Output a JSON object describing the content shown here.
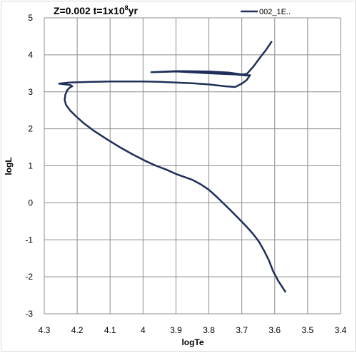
{
  "chart_data": {
    "type": "line",
    "title_main": "Z=0.002 t=1x10",
    "title_sup": "8",
    "title_end": "yr",
    "xlabel": "logTe",
    "ylabel": "logL",
    "xlim": [
      4.3,
      3.4
    ],
    "ylim": [
      -3,
      5
    ],
    "x_reversed": true,
    "grid": true,
    "legend_position": "top-right",
    "x_ticks": [
      "4.3",
      "4.2",
      "4.1",
      "4",
      "3.9",
      "3.8",
      "3.7",
      "3.6",
      "3.5",
      "3.4"
    ],
    "x_tick_values": [
      4.3,
      4.2,
      4.1,
      4.0,
      3.9,
      3.8,
      3.7,
      3.6,
      3.5,
      3.4
    ],
    "y_ticks": [
      "5",
      "4",
      "3",
      "2",
      "1",
      "0",
      "-1",
      "-2",
      "-3"
    ],
    "y_tick_values": [
      5,
      4,
      3,
      2,
      1,
      0,
      -1,
      -2,
      -3
    ],
    "series": [
      {
        "name": "002_1E..",
        "color": "#1f2f5a",
        "x": [
          3.568,
          3.59,
          3.605,
          3.618,
          3.632,
          3.648,
          3.665,
          3.685,
          3.71,
          3.74,
          3.775,
          3.8,
          3.825,
          3.85,
          3.875,
          3.9,
          3.93,
          3.96,
          3.99,
          4.03,
          4.07,
          4.11,
          4.15,
          4.18,
          4.205,
          4.222,
          4.234,
          4.238,
          4.236,
          4.23,
          4.222,
          4.215,
          4.22,
          4.235,
          4.255,
          4.225,
          4.15,
          4.1,
          4.0,
          3.95,
          3.9,
          3.85,
          3.8,
          3.75,
          3.72,
          3.7,
          3.685,
          3.675,
          3.685,
          3.72,
          3.8,
          3.9,
          3.975,
          3.9,
          3.8,
          3.74,
          3.7,
          3.685,
          3.665,
          3.645,
          3.625,
          3.61
        ],
        "y": [
          -2.4,
          -2.1,
          -1.85,
          -1.55,
          -1.3,
          -1.05,
          -0.85,
          -0.65,
          -0.42,
          -0.15,
          0.15,
          0.35,
          0.5,
          0.62,
          0.7,
          0.78,
          0.9,
          1.0,
          1.12,
          1.3,
          1.5,
          1.72,
          1.95,
          2.15,
          2.35,
          2.5,
          2.65,
          2.78,
          2.92,
          3.05,
          3.12,
          3.15,
          3.18,
          3.2,
          3.22,
          3.25,
          3.27,
          3.28,
          3.28,
          3.27,
          3.25,
          3.23,
          3.2,
          3.15,
          3.13,
          3.22,
          3.32,
          3.45,
          3.44,
          3.47,
          3.5,
          3.55,
          3.53,
          3.56,
          3.55,
          3.52,
          3.47,
          3.48,
          3.68,
          3.92,
          4.15,
          4.35
        ]
      }
    ]
  }
}
